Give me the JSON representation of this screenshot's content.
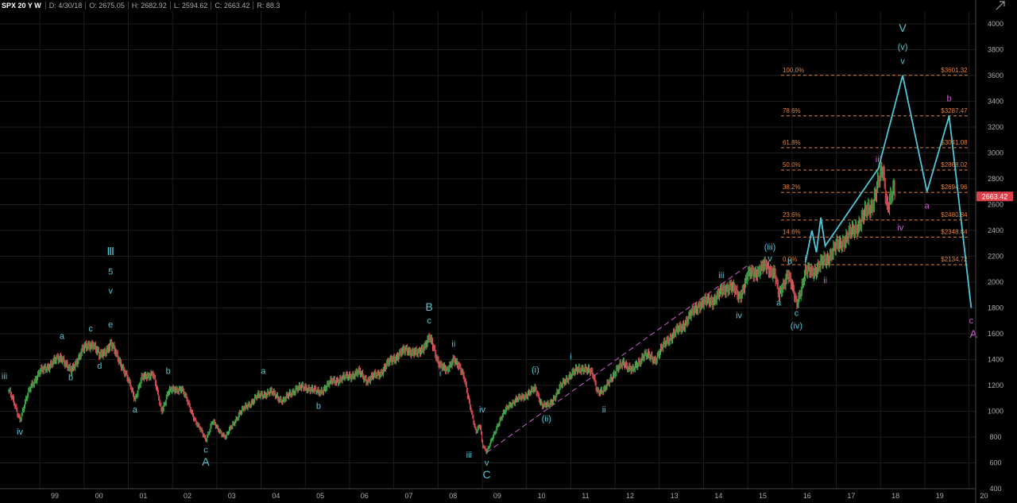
{
  "header": {
    "symbol": "SPX 20 Y W",
    "date": "D: 4/30/18",
    "open": "O: 2675.05",
    "high": "H: 2682.92",
    "low": "L: 2594.62",
    "close": "C: 2663.42",
    "range": "R: 88.3"
  },
  "colors": {
    "up_bar": "#3db34a",
    "down_bar": "#e0505a",
    "wave_labels": "#4fc7d9",
    "alt_labels": "#cc5fd0",
    "projection": "#4fc7d9",
    "channel": "#cc5fd0",
    "fib_lines": "#e0803a",
    "last_price_bg": "#d9414a"
  },
  "chart_data": {
    "type": "line",
    "ylim": [
      400,
      4000
    ],
    "y_ticks": [
      "400",
      "600",
      "800",
      "1000",
      "1200",
      "1400",
      "1600",
      "1800",
      "2000",
      "2200",
      "2400",
      "2600",
      "2800",
      "3000",
      "3200",
      "3400",
      "3600",
      "3800",
      "4000"
    ],
    "x_ticks": [
      {
        "label": "99",
        "x": 1999.0
      },
      {
        "label": "00",
        "x": 2000.0
      },
      {
        "label": "01",
        "x": 2001.0
      },
      {
        "label": "02",
        "x": 2002.0
      },
      {
        "label": "03",
        "x": 2003.0
      },
      {
        "label": "04",
        "x": 2004.0
      },
      {
        "label": "05",
        "x": 2005.0
      },
      {
        "label": "06",
        "x": 2006.0
      },
      {
        "label": "07",
        "x": 2007.0
      },
      {
        "label": "08",
        "x": 2008.0
      },
      {
        "label": "09",
        "x": 2009.0
      },
      {
        "label": "10",
        "x": 2010.0
      },
      {
        "label": "11",
        "x": 2011.0
      },
      {
        "label": "12",
        "x": 2012.0
      },
      {
        "label": "13",
        "x": 2013.0
      },
      {
        "label": "14",
        "x": 2014.0
      },
      {
        "label": "15",
        "x": 2015.0
      },
      {
        "label": "16",
        "x": 2016.0
      },
      {
        "label": "17",
        "x": 2017.0
      },
      {
        "label": "18",
        "x": 2018.0
      },
      {
        "label": "19",
        "x": 2019.0
      },
      {
        "label": "20",
        "x": 2020.0
      }
    ],
    "price_path": [
      [
        1998.3,
        1160
      ],
      [
        1998.55,
        940
      ],
      [
        1998.8,
        1200
      ],
      [
        1999.0,
        1300
      ],
      [
        1999.3,
        1380
      ],
      [
        1999.5,
        1420
      ],
      [
        1999.7,
        1300
      ],
      [
        1999.95,
        1470
      ],
      [
        2000.2,
        1530
      ],
      [
        2000.35,
        1420
      ],
      [
        2000.6,
        1520
      ],
      [
        2000.85,
        1360
      ],
      [
        2001.15,
        1100
      ],
      [
        2001.3,
        1250
      ],
      [
        2001.55,
        1300
      ],
      [
        2001.75,
        1000
      ],
      [
        2001.9,
        1150
      ],
      [
        2002.2,
        1180
      ],
      [
        2002.55,
        900
      ],
      [
        2002.75,
        780
      ],
      [
        2002.9,
        920
      ],
      [
        2003.0,
        870
      ],
      [
        2003.2,
        800
      ],
      [
        2003.5,
        980
      ],
      [
        2003.9,
        1110
      ],
      [
        2004.2,
        1150
      ],
      [
        2004.5,
        1080
      ],
      [
        2004.8,
        1180
      ],
      [
        2005.1,
        1180
      ],
      [
        2005.3,
        1140
      ],
      [
        2005.6,
        1230
      ],
      [
        2005.9,
        1260
      ],
      [
        2006.2,
        1300
      ],
      [
        2006.4,
        1240
      ],
      [
        2006.7,
        1300
      ],
      [
        2006.95,
        1400
      ],
      [
        2007.3,
        1480
      ],
      [
        2007.55,
        1440
      ],
      [
        2007.8,
        1570
      ],
      [
        2008.0,
        1390
      ],
      [
        2008.2,
        1300
      ],
      [
        2008.35,
        1420
      ],
      [
        2008.6,
        1250
      ],
      [
        2008.75,
        1000
      ],
      [
        2008.85,
        830
      ],
      [
        2008.95,
        900
      ],
      [
        2009.0,
        750
      ],
      [
        2009.1,
        680
      ],
      [
        2009.35,
        900
      ],
      [
        2009.6,
        1050
      ],
      [
        2009.9,
        1110
      ],
      [
        2010.2,
        1170
      ],
      [
        2010.35,
        1050
      ],
      [
        2010.5,
        1040
      ],
      [
        2010.75,
        1180
      ],
      [
        2011.0,
        1290
      ],
      [
        2011.3,
        1340
      ],
      [
        2011.5,
        1280
      ],
      [
        2011.6,
        1160
      ],
      [
        2011.75,
        1150
      ],
      [
        2011.9,
        1260
      ],
      [
        2012.2,
        1380
      ],
      [
        2012.4,
        1310
      ],
      [
        2012.65,
        1440
      ],
      [
        2012.9,
        1400
      ],
      [
        2013.2,
        1560
      ],
      [
        2013.5,
        1650
      ],
      [
        2013.9,
        1830
      ],
      [
        2014.2,
        1860
      ],
      [
        2014.6,
        1980
      ],
      [
        2014.8,
        1880
      ],
      [
        2015.0,
        2050
      ],
      [
        2015.4,
        2120
      ],
      [
        2015.6,
        2080
      ],
      [
        2015.7,
        1880
      ],
      [
        2015.9,
        2080
      ],
      [
        2016.1,
        1830
      ],
      [
        2016.3,
        2070
      ],
      [
        2016.55,
        2100
      ],
      [
        2016.75,
        2170
      ],
      [
        2017.0,
        2270
      ],
      [
        2017.4,
        2400
      ],
      [
        2017.8,
        2600
      ],
      [
        2018.05,
        2870
      ],
      [
        2018.15,
        2600
      ],
      [
        2018.3,
        2700
      ],
      [
        2018.33,
        2663
      ]
    ],
    "projection_path": [
      [
        2016.3,
        2150
      ],
      [
        2016.45,
        2400
      ],
      [
        2016.55,
        2230
      ],
      [
        2016.65,
        2500
      ],
      [
        2016.75,
        2280
      ],
      [
        2017.95,
        2880
      ],
      [
        2018.5,
        3601
      ],
      [
        2019.05,
        2700
      ],
      [
        2019.55,
        3287
      ],
      [
        2020.05,
        1800
      ]
    ],
    "channel_line": [
      [
        2009.1,
        680
      ],
      [
        2015.0,
        2130
      ]
    ],
    "last_price": "2663.42",
    "fib_levels": [
      {
        "pct": "100.0%",
        "price": "$3601.32",
        "value": 3601.32
      },
      {
        "pct": "78.6%",
        "price": "$3287.47",
        "value": 3287.47
      },
      {
        "pct": "61.8%",
        "price": "$3041.08",
        "value": 3041.08
      },
      {
        "pct": "50.0%",
        "price": "$2868.02",
        "value": 2868.02
      },
      {
        "pct": "38.2%",
        "price": "$2694.96",
        "value": 2694.96
      },
      {
        "pct": "23.6%",
        "price": "$2480.84",
        "value": 2480.84
      },
      {
        "pct": "14.6%",
        "price": "$2348.84",
        "value": 2348.84
      },
      {
        "pct": "0.0%",
        "price": "$2134.72",
        "value": 2134.72
      }
    ],
    "wave_labels": [
      {
        "t": "iii",
        "x": 1998.2,
        "y": 1250,
        "c": "wave_labels"
      },
      {
        "t": "iv",
        "x": 1998.55,
        "y": 820,
        "c": "wave_labels"
      },
      {
        "t": "a",
        "x": 1999.5,
        "y": 1560,
        "c": "wave_labels"
      },
      {
        "t": "b",
        "x": 1999.7,
        "y": 1240,
        "c": "wave_labels"
      },
      {
        "t": "c",
        "x": 2000.15,
        "y": 1620,
        "c": "wave_labels"
      },
      {
        "t": "d",
        "x": 2000.35,
        "y": 1330,
        "c": "wave_labels"
      },
      {
        "t": "Ⅲ",
        "x": 2000.6,
        "y": 2210,
        "c": "wave_labels"
      },
      {
        "t": "5",
        "x": 2000.6,
        "y": 2060,
        "c": "wave_labels"
      },
      {
        "t": "v",
        "x": 2000.6,
        "y": 1910,
        "c": "wave_labels"
      },
      {
        "t": "e",
        "x": 2000.6,
        "y": 1650,
        "c": "wave_labels"
      },
      {
        "t": "a",
        "x": 2001.15,
        "y": 990,
        "c": "wave_labels"
      },
      {
        "t": "b",
        "x": 2001.9,
        "y": 1290,
        "c": "wave_labels"
      },
      {
        "t": "c",
        "x": 2002.75,
        "y": 680,
        "c": "wave_labels"
      },
      {
        "t": "A",
        "x": 2002.75,
        "y": 580,
        "c": "wave_labels"
      },
      {
        "t": "a",
        "x": 2004.05,
        "y": 1290,
        "c": "wave_labels"
      },
      {
        "t": "b",
        "x": 2005.3,
        "y": 1020,
        "c": "wave_labels"
      },
      {
        "t": "B",
        "x": 2007.8,
        "y": 1780,
        "c": "wave_labels"
      },
      {
        "t": "c",
        "x": 2007.8,
        "y": 1680,
        "c": "wave_labels"
      },
      {
        "t": "ii",
        "x": 2008.35,
        "y": 1500,
        "c": "wave_labels"
      },
      {
        "t": "i",
        "x": 2008.05,
        "y": 1270,
        "c": "wave_labels"
      },
      {
        "t": "iv",
        "x": 2009.0,
        "y": 990,
        "c": "wave_labels"
      },
      {
        "t": "iii",
        "x": 2008.7,
        "y": 640,
        "c": "wave_labels"
      },
      {
        "t": "v",
        "x": 2009.1,
        "y": 580,
        "c": "wave_labels"
      },
      {
        "t": "C",
        "x": 2009.1,
        "y": 480,
        "c": "wave_labels"
      },
      {
        "t": "(i)",
        "x": 2010.2,
        "y": 1300,
        "c": "wave_labels"
      },
      {
        "t": "(ii)",
        "x": 2010.45,
        "y": 920,
        "c": "wave_labels"
      },
      {
        "t": "i",
        "x": 2011.0,
        "y": 1400,
        "c": "wave_labels"
      },
      {
        "t": "ii",
        "x": 2011.75,
        "y": 990,
        "c": "wave_labels"
      },
      {
        "t": "iii",
        "x": 2014.4,
        "y": 2030,
        "c": "wave_labels"
      },
      {
        "t": "iv",
        "x": 2014.8,
        "y": 1720,
        "c": "wave_labels"
      },
      {
        "t": "(iii)",
        "x": 2015.5,
        "y": 2250,
        "c": "wave_labels"
      },
      {
        "t": "v",
        "x": 2015.5,
        "y": 2160,
        "c": "wave_labels"
      },
      {
        "t": "b",
        "x": 2015.95,
        "y": 2140,
        "c": "wave_labels"
      },
      {
        "t": "a",
        "x": 2015.7,
        "y": 1820,
        "c": "wave_labels"
      },
      {
        "t": "c",
        "x": 2016.1,
        "y": 1740,
        "c": "wave_labels"
      },
      {
        "t": "(iv)",
        "x": 2016.1,
        "y": 1640,
        "c": "wave_labels"
      },
      {
        "t": "i",
        "x": 2016.3,
        "y": 2160,
        "c": "alt_labels"
      },
      {
        "t": "ii",
        "x": 2016.75,
        "y": 1990,
        "c": "alt_labels"
      },
      {
        "t": "iii",
        "x": 2017.95,
        "y": 2930,
        "c": "alt_labels"
      },
      {
        "t": "iv",
        "x": 2018.45,
        "y": 2400,
        "c": "alt_labels"
      },
      {
        "t": "V",
        "x": 2018.5,
        "y": 3940,
        "c": "wave_labels"
      },
      {
        "t": "(v)",
        "x": 2018.5,
        "y": 3800,
        "c": "wave_labels"
      },
      {
        "t": "v",
        "x": 2018.5,
        "y": 3690,
        "c": "wave_labels"
      },
      {
        "t": "b",
        "x": 2019.55,
        "y": 3400,
        "c": "alt_labels"
      },
      {
        "t": "a",
        "x": 2019.05,
        "y": 2570,
        "c": "alt_labels"
      },
      {
        "t": "c",
        "x": 2020.05,
        "y": 1680,
        "c": "alt_labels"
      },
      {
        "t": "A",
        "x": 2020.1,
        "y": 1570,
        "c": "alt_labels"
      }
    ]
  }
}
